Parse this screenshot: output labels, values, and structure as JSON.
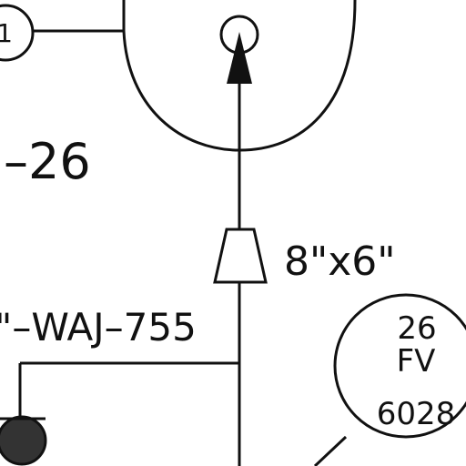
{
  "labels": {
    "instrument_left": "1",
    "line_ref": "–26",
    "reducer_size": "8\"x6\"",
    "line_number": "\"–WAJ–755",
    "fv_tag_number": "26",
    "fv_tag_type": "FV",
    "fv_tag_loop": "6028"
  }
}
